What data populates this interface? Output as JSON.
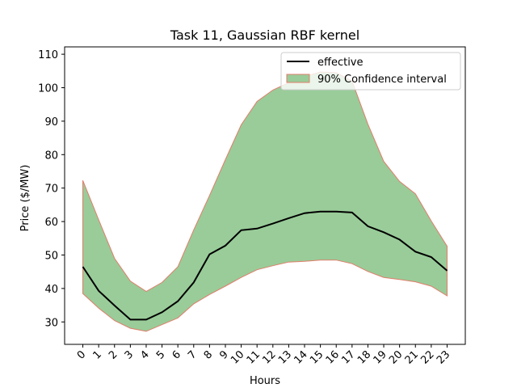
{
  "chart_data": {
    "type": "line",
    "title": "Task 11, Gaussian RBF kernel",
    "xlabel": "Hours",
    "ylabel": "Price ($/MW)",
    "x": [
      0,
      1,
      2,
      3,
      4,
      5,
      6,
      7,
      8,
      9,
      10,
      11,
      12,
      13,
      14,
      15,
      16,
      17,
      18,
      19,
      20,
      21,
      22,
      23
    ],
    "xlim": [
      -1.15,
      24.15
    ],
    "ylim": [
      23.3,
      112.2
    ],
    "yticks": [
      30,
      40,
      50,
      60,
      70,
      80,
      90,
      100,
      110
    ],
    "grid": false,
    "legend_position": "upper right",
    "series": [
      {
        "name": "effective",
        "kind": "line",
        "color": "#000000",
        "values": [
          46.5,
          39.3,
          34.9,
          30.7,
          30.7,
          32.9,
          36.2,
          41.8,
          50.2,
          52.8,
          57.4,
          57.9,
          59.4,
          61.0,
          62.5,
          63.0,
          63.0,
          62.7,
          58.6,
          56.8,
          54.6,
          51.0,
          49.4,
          45.3
        ]
      },
      {
        "name": "90% Confidence interval",
        "kind": "band",
        "fill": "#99cc99",
        "edge": "#e07e6a",
        "upper": [
          72.3,
          60.5,
          49.0,
          42.2,
          39.1,
          41.8,
          46.5,
          57.5,
          67.8,
          78.5,
          88.9,
          95.9,
          99.3,
          101.5,
          103.3,
          104.7,
          104.5,
          102.0,
          89.1,
          78.0,
          72.0,
          68.3,
          60.2,
          52.6
        ],
        "lower": [
          38.5,
          34.1,
          30.4,
          28.1,
          27.2,
          29.2,
          31.2,
          35.4,
          38.2,
          40.7,
          43.3,
          45.6,
          46.8,
          47.9,
          48.1,
          48.5,
          48.5,
          47.4,
          45.1,
          43.3,
          42.7,
          42.0,
          40.7,
          37.8
        ]
      }
    ]
  }
}
